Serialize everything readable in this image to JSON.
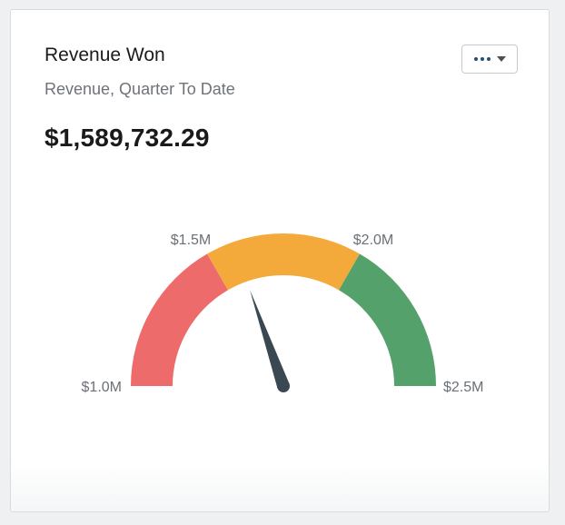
{
  "widget": {
    "title": "Revenue Won",
    "subtitle": "Revenue, Quarter To Date",
    "value": "$1,589,732.29",
    "menu_icon": "more-options-icon",
    "dropdown_icon": "caret-down-icon"
  },
  "gauge": {
    "min": 1000000,
    "max": 2500000,
    "current": 1589732.29,
    "labels": {
      "min": "$1.0M",
      "low_threshold": "$1.5M",
      "high_threshold": "$2.0M",
      "max": "$2.5M"
    },
    "bands": [
      {
        "name": "low",
        "from": 1000000,
        "to": 1500000,
        "color": "#ee6b6b"
      },
      {
        "name": "mid",
        "from": 1500000,
        "to": 2000000,
        "color": "#f3aa3b"
      },
      {
        "name": "high",
        "from": 2000000,
        "to": 2500000,
        "color": "#55a16c"
      }
    ],
    "needle_color": "#3a4852"
  }
}
